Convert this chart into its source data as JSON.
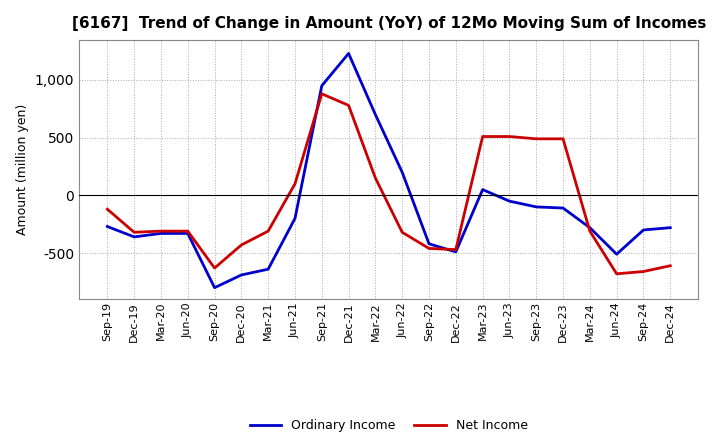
{
  "title": "[6167]  Trend of Change in Amount (YoY) of 12Mo Moving Sum of Incomes",
  "ylabel": "Amount (million yen)",
  "labels": [
    "Sep-19",
    "Dec-19",
    "Mar-20",
    "Jun-20",
    "Sep-20",
    "Dec-20",
    "Mar-21",
    "Jun-21",
    "Sep-21",
    "Dec-21",
    "Mar-22",
    "Jun-22",
    "Sep-22",
    "Dec-22",
    "Mar-23",
    "Jun-23",
    "Sep-23",
    "Dec-23",
    "Mar-24",
    "Jun-24",
    "Sep-24",
    "Dec-24"
  ],
  "ordinary_income": [
    -270,
    -360,
    -330,
    -330,
    -800,
    -690,
    -640,
    -200,
    950,
    1230,
    700,
    200,
    -420,
    -490,
    50,
    -50,
    -100,
    -110,
    -280,
    -510,
    -300,
    -280
  ],
  "net_income": [
    -120,
    -320,
    -310,
    -310,
    -630,
    -430,
    -310,
    100,
    880,
    780,
    150,
    -320,
    -460,
    -470,
    510,
    510,
    490,
    490,
    -310,
    -680,
    -660,
    -610
  ],
  "ordinary_color": "#0000cc",
  "net_color": "#cc0000",
  "ylim": [
    -900,
    1350
  ],
  "yticks": [
    -500,
    0,
    500,
    1000
  ],
  "background_color": "#ffffff",
  "grid_color": "#aaaaaa",
  "legend_ordinary": "Ordinary Income",
  "legend_net": "Net Income",
  "line_width": 2.0,
  "title_fontsize": 11,
  "ylabel_fontsize": 9,
  "tick_fontsize": 8
}
